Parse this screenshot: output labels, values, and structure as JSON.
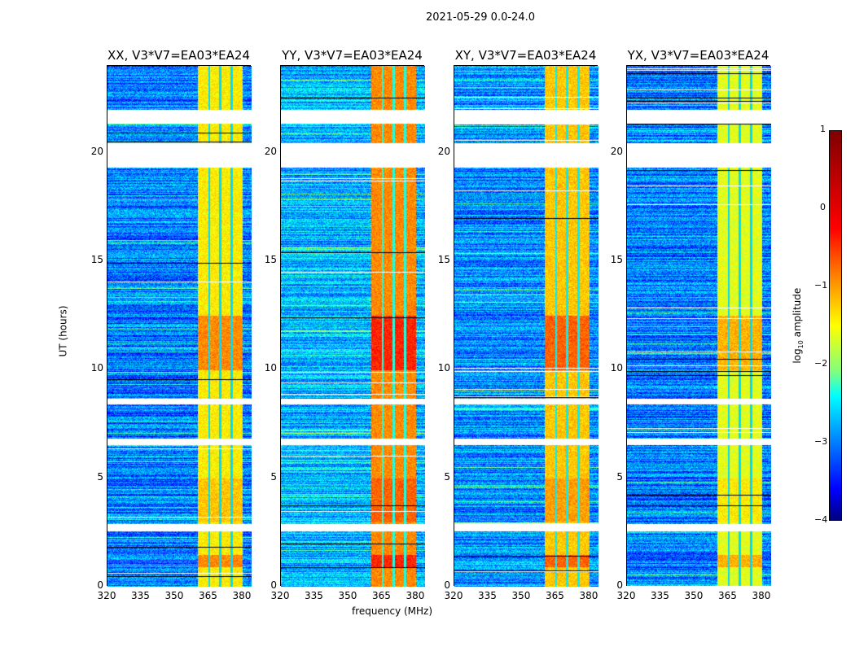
{
  "suptitle": "2021-05-29 0.0-24.0",
  "chart_data": {
    "type": "heatmap",
    "title": "2021-05-29 0.0-24.0",
    "xlabel": "frequency (MHz)",
    "ylabel": "UT (hours)",
    "xlim": [
      320,
      384
    ],
    "ylim": [
      0,
      24
    ],
    "xticks": [
      "320",
      "335",
      "350",
      "365",
      "380"
    ],
    "yticks": [
      "0",
      "5",
      "10",
      "15",
      "20"
    ],
    "panels": [
      {
        "title": "XX, V3*V7=EA03*EA24",
        "band_log_amp": -0.8,
        "bg_log_amp": -2.8
      },
      {
        "title": "YY, V3*V7=EA03*EA24",
        "band_log_amp": -0.3,
        "bg_log_amp": -2.5
      },
      {
        "title": "XY, V3*V7=EA03*EA24",
        "band_log_amp": -0.6,
        "bg_log_amp": -2.7
      },
      {
        "title": "YX, V3*V7=EA03*EA24",
        "band_log_amp": -1.0,
        "bg_log_amp": -2.8
      }
    ],
    "band_MHz": [
      360,
      380
    ],
    "band_gaps_MHz": [
      365,
      370,
      375
    ],
    "flagged_UT_hours": [
      [
        21.35,
        22.0
      ],
      [
        19.35,
        20.45
      ],
      [
        8.4,
        8.7
      ],
      [
        6.55,
        6.85
      ],
      [
        2.55,
        2.9
      ]
    ],
    "colorbar": {
      "label": "log10 amplitude",
      "range": [
        -4,
        1
      ],
      "ticks": [
        "1",
        "0",
        "−1",
        "−2",
        "−3",
        "−4"
      ]
    }
  }
}
